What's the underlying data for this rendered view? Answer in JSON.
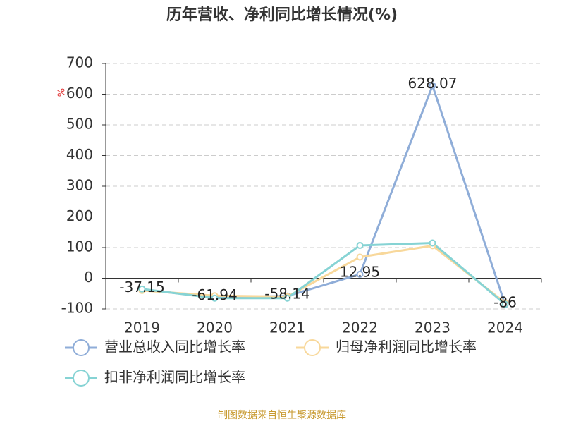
{
  "chart_data": {
    "type": "line",
    "title": "历年营收、净利同比增长情况(%)",
    "y_label": "%",
    "categories": [
      "2019",
      "2020",
      "2021",
      "2022",
      "2023",
      "2024"
    ],
    "series": [
      {
        "name": "营业总收入同比增长率",
        "color": "#8fadd8",
        "values": [
          -37.15,
          -61.94,
          -58.14,
          12.95,
          628.07,
          -86
        ],
        "show_labels": true
      },
      {
        "name": "归母净利润同比增长率",
        "color": "#f8d89b",
        "values": [
          -40,
          -57,
          -60,
          69,
          106,
          -80
        ]
      },
      {
        "name": "扣非净利润同比增长率",
        "color": "#86d3d4",
        "values": [
          -35,
          -65,
          -65,
          107,
          115,
          -85
        ]
      }
    ],
    "ylim": [
      -100,
      700
    ],
    "yticks": [
      -100,
      0,
      100,
      200,
      300,
      400,
      500,
      600,
      700
    ],
    "grid": true,
    "legend": "bottom",
    "source": "制图数据来自恒生聚源数据库"
  }
}
